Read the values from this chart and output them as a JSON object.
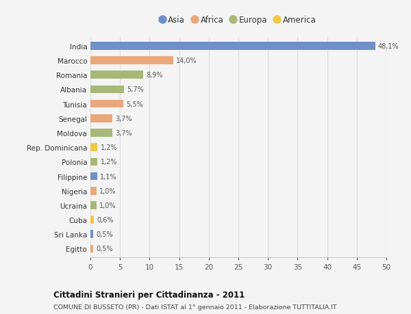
{
  "countries": [
    "India",
    "Marocco",
    "Romania",
    "Albania",
    "Tunisia",
    "Senegal",
    "Moldova",
    "Rep. Dominicana",
    "Polonia",
    "Filippine",
    "Nigeria",
    "Ucraina",
    "Cuba",
    "Sri Lanka",
    "Egitto"
  ],
  "values": [
    48.1,
    14.0,
    8.9,
    5.7,
    5.5,
    3.7,
    3.7,
    1.2,
    1.2,
    1.1,
    1.0,
    1.0,
    0.6,
    0.5,
    0.5
  ],
  "labels": [
    "48,1%",
    "14,0%",
    "8,9%",
    "5,7%",
    "5,5%",
    "3,7%",
    "3,7%",
    "1,2%",
    "1,2%",
    "1,1%",
    "1,0%",
    "1,0%",
    "0,6%",
    "0,5%",
    "0,5%"
  ],
  "continents": [
    "Asia",
    "Africa",
    "Europa",
    "Europa",
    "Africa",
    "Africa",
    "Europa",
    "America",
    "Europa",
    "Asia",
    "Africa",
    "Europa",
    "America",
    "Asia",
    "Africa"
  ],
  "continent_colors": {
    "Asia": "#7090c8",
    "Africa": "#e8a87c",
    "Europa": "#a8b878",
    "America": "#f0c848"
  },
  "legend_order": [
    "Asia",
    "Africa",
    "Europa",
    "America"
  ],
  "title": "Cittadini Stranieri per Cittadinanza - 2011",
  "subtitle": "COMUNE DI BUSSETO (PR) - Dati ISTAT al 1° gennaio 2011 - Elaborazione TUTTITALIA.IT",
  "xlim": [
    0,
    50
  ],
  "xticks": [
    0,
    5,
    10,
    15,
    20,
    25,
    30,
    35,
    40,
    45,
    50
  ],
  "background_color": "#f4f4f4",
  "grid_color": "#dddddd",
  "bar_height": 0.55
}
